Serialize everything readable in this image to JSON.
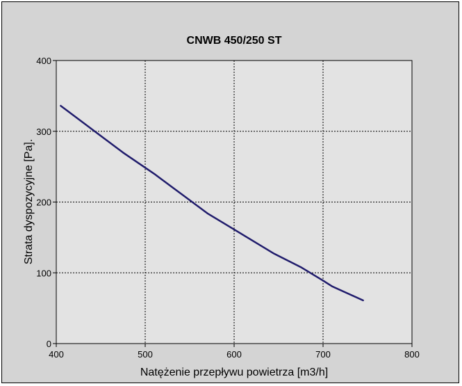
{
  "chart_data": {
    "type": "line",
    "title": "CNWB 450/250 ST",
    "xlabel": "Natężenie przepływu powietrza [m3/h]",
    "ylabel": "Strata dyspozycyjne [Pa].",
    "xlim": [
      400,
      800
    ],
    "ylim": [
      0,
      400
    ],
    "x_ticks": [
      400,
      500,
      600,
      700,
      800
    ],
    "y_ticks": [
      0,
      100,
      200,
      300,
      400
    ],
    "grid": true,
    "series": [
      {
        "x": [
          405,
          440,
          475,
          510,
          540,
          570,
          595,
          620,
          645,
          675,
          700,
          710,
          745
        ],
        "y": [
          336,
          303,
          270,
          240,
          212,
          184,
          165,
          146,
          127,
          108,
          89,
          81,
          61
        ],
        "color": "#201c6c"
      }
    ]
  },
  "colors": {
    "background": "#d4d4d4",
    "plot_area": "#e3e3e3",
    "line": "#201c6c"
  }
}
